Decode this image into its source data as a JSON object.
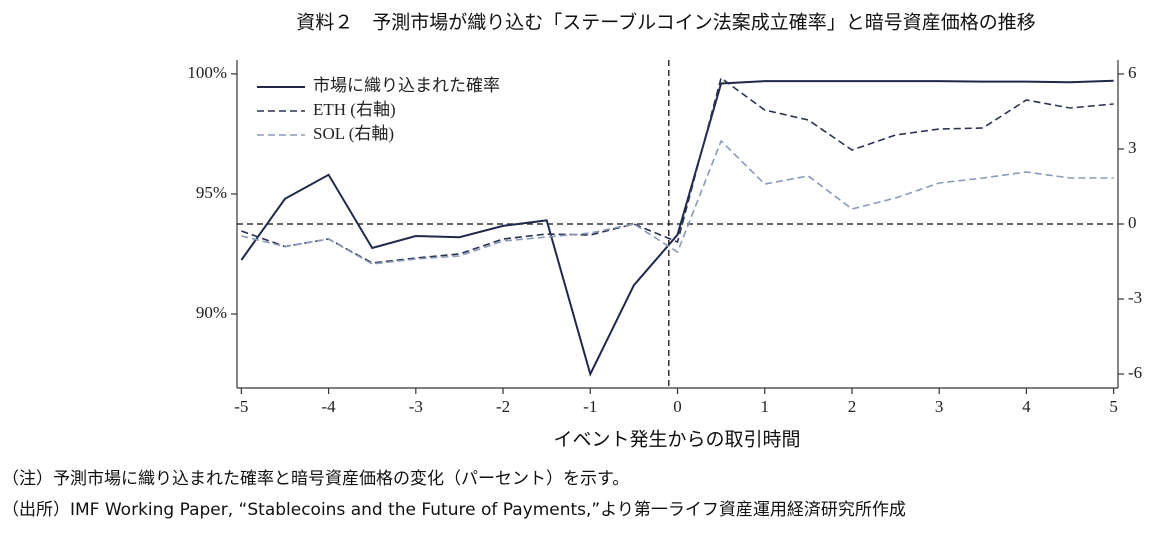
{
  "chart_data": {
    "type": "line",
    "title": "資料２　予測市場が織り込む「ステーブルコイン法案成立確率」と暗号資産価格の推移",
    "x_label": "イベント発生からの取引時間",
    "x": [
      -5,
      -4.5,
      -4,
      -3.5,
      -3,
      -2.5,
      -2,
      -1.5,
      -1,
      -0.5,
      0,
      0.5,
      1,
      1.5,
      2,
      2.5,
      3,
      3.5,
      4,
      4.5,
      5
    ],
    "series": [
      {
        "name": "市場に織り込まれた確率",
        "color": "#1f2a4a",
        "dash": "solid",
        "axis": "y",
        "values": [
          92.25,
          94.8,
          95.8,
          92.75,
          93.25,
          93.2,
          93.67,
          93.9,
          87.5,
          91.2,
          93.3,
          99.6,
          99.7,
          99.7,
          99.7,
          99.7,
          99.7,
          99.68,
          99.68,
          99.65,
          99.72
        ]
      },
      {
        "name": "ETH (右軸)",
        "color": "#2a3350",
        "dash": "dashed",
        "axis": "y2",
        "values": [
          -0.28,
          -0.9,
          -0.6,
          -1.56,
          -1.36,
          -1.2,
          -0.6,
          -0.4,
          -0.44,
          0,
          -0.72,
          5.84,
          4.56,
          4.16,
          2.96,
          3.56,
          3.8,
          3.84,
          4.96,
          4.64,
          4.8
        ]
      },
      {
        "name": "SOL (右軸)",
        "color": "#8a9bb8",
        "dash": "dashed",
        "axis": "y2",
        "values": [
          -0.48,
          -0.9,
          -0.6,
          -1.6,
          -1.4,
          -1.28,
          -0.68,
          -0.52,
          -0.36,
          0,
          -1.12,
          3.32,
          1.6,
          1.92,
          0.6,
          1.04,
          1.64,
          1.84,
          2.08,
          1.84,
          1.84
        ]
      }
    ],
    "xlim": [
      -5.05,
      5.05
    ],
    "xticks": [
      -5,
      -4,
      -3,
      -2,
      -1,
      0,
      1,
      2,
      3,
      4,
      5
    ],
    "ylim": [
      86.92,
      100.58
    ],
    "yticks": [
      {
        "value": 90,
        "label": "90%"
      },
      {
        "value": 95,
        "label": "95%"
      },
      {
        "value": 100,
        "label": "100%"
      }
    ],
    "y2lim": [
      -6.56,
      6.56
    ],
    "y2ticks": [
      -6,
      -3,
      0,
      3,
      6
    ],
    "event_x": -0.1,
    "zero_line_y2": 0,
    "legend": "upper left"
  },
  "notes": [
    "（注）予測市場に織り込まれた確率と暗号資産価格の変化（パーセント）を示す。",
    "（出所）IMF Working Paper, “Stablecoins and the Future of Payments,”より第一ライフ資産運用経済研究所作成"
  ]
}
